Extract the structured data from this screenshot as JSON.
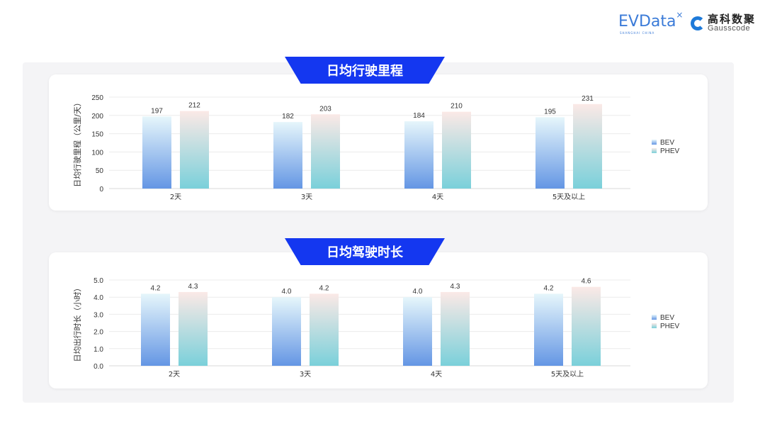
{
  "logos": {
    "evdata": {
      "text": "EVData",
      "sub": "SHANGHAI CHINA"
    },
    "gausscode": {
      "cn": "高科数聚",
      "en": "Gausscode"
    }
  },
  "colors": {
    "banner": "#1437f0",
    "bev_top": "#e6f6fb",
    "bev_bottom": "#6496e4",
    "phev_top": "#fbe9e6",
    "phev_bottom": "#7ad0da"
  },
  "chart_data": [
    {
      "type": "bar",
      "title": "日均行驶里程",
      "ylabel": "日均行驶里程（公里/天）",
      "xlabel": "",
      "categories": [
        "2天",
        "3天",
        "4天",
        "5天及以上"
      ],
      "series": [
        {
          "name": "BEV",
          "values": [
            197,
            182,
            184,
            195
          ]
        },
        {
          "name": "PHEV",
          "values": [
            212,
            203,
            210,
            231
          ]
        }
      ],
      "ylim": [
        0,
        250
      ],
      "yticks": [
        "0",
        "50",
        "100",
        "150",
        "200",
        "250"
      ],
      "grid": true,
      "legend": "right",
      "decimals": 0
    },
    {
      "type": "bar",
      "title": "日均驾驶时长",
      "ylabel": "日均出行时长（小时）",
      "xlabel": "",
      "categories": [
        "2天",
        "3天",
        "4天",
        "5天及以上"
      ],
      "series": [
        {
          "name": "BEV",
          "values": [
            4.2,
            4.0,
            4.0,
            4.2
          ]
        },
        {
          "name": "PHEV",
          "values": [
            4.3,
            4.2,
            4.3,
            4.6
          ]
        }
      ],
      "ylim": [
        0,
        5
      ],
      "yticks": [
        "0.0",
        "1.0",
        "2.0",
        "3.0",
        "4.0",
        "5.0"
      ],
      "grid": true,
      "legend": "right",
      "decimals": 1
    }
  ]
}
